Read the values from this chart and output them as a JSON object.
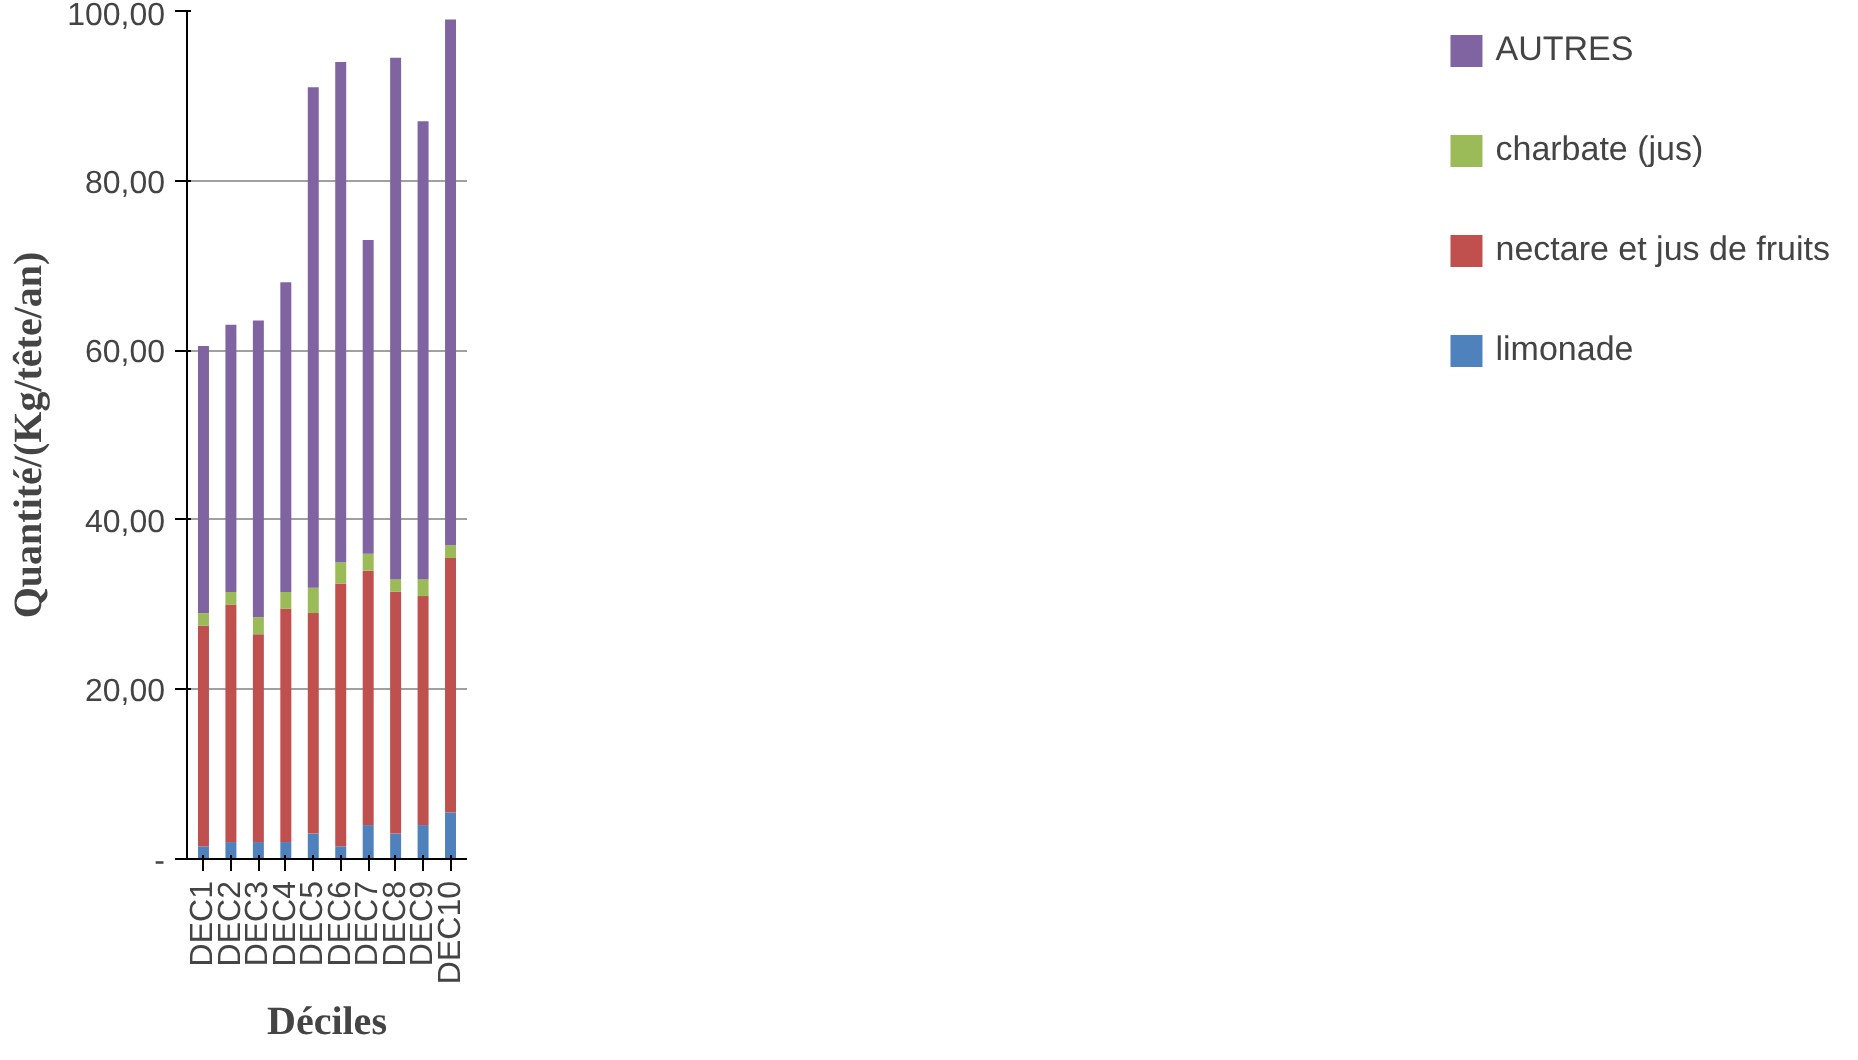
{
  "chart_data": {
    "type": "bar",
    "stacked": true,
    "xlabel": "Déciles",
    "ylabel": "Quantité/(Kg/tête/an)",
    "categories": [
      "DEC1",
      "DEC2",
      "DEC3",
      "DEC4",
      "DEC5",
      "DEC6",
      "DEC7",
      "DEC8",
      "DEC9",
      "DEC10"
    ],
    "series": [
      {
        "name": "limonade",
        "color": "#4f81bd",
        "values": [
          1.5,
          2,
          2,
          2,
          3,
          1.5,
          4,
          3,
          4,
          5.5
        ]
      },
      {
        "name": "nectare et jus de fruits",
        "color": "#c0504d",
        "values": [
          26,
          28,
          24.5,
          27.5,
          26,
          31,
          30,
          28.5,
          27,
          30
        ]
      },
      {
        "name": "charbate (jus)",
        "color": "#9bbb59",
        "values": [
          1.5,
          1.5,
          2,
          2,
          3,
          2.5,
          2,
          1.5,
          2,
          1.5
        ]
      },
      {
        "name": "AUTRES",
        "color": "#8064a2",
        "values": [
          31.5,
          31.5,
          35,
          36.5,
          59,
          59,
          37,
          61.5,
          54,
          62
        ]
      }
    ],
    "ylim": [
      0,
      100
    ],
    "yticks": [
      {
        "value": 0,
        "label": "-"
      },
      {
        "value": 20,
        "label": "20,00"
      },
      {
        "value": 40,
        "label": "40,00"
      },
      {
        "value": 60,
        "label": "60,00"
      },
      {
        "value": 80,
        "label": "80,00"
      },
      {
        "value": 100,
        "label": "100,00"
      }
    ],
    "grid": "y",
    "legend": "right"
  }
}
